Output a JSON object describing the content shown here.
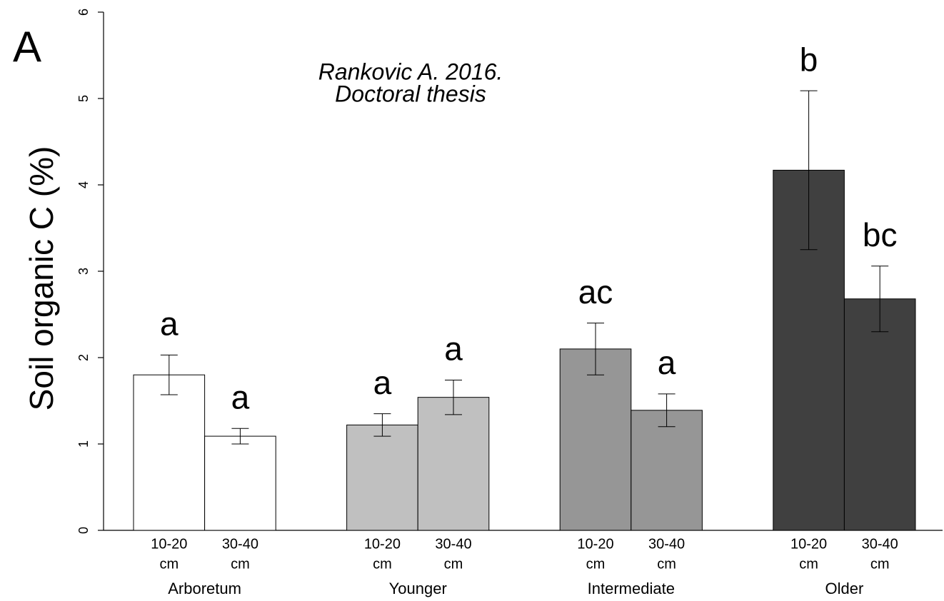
{
  "chart_data": {
    "type": "grouped-bar",
    "panel_label": "A",
    "annotation": [
      "Rankovic A. 2016.",
      "Doctoral thesis"
    ],
    "y_label": "Soil organic C (%)",
    "ylim": [
      0,
      6
    ],
    "yticks": [
      0,
      1,
      2,
      3,
      4,
      5,
      6
    ],
    "groups": [
      {
        "name": "Arboretum",
        "color": "#ffffff",
        "categories": [
          [
            "10-20",
            "cm"
          ],
          [
            "30-40",
            "cm"
          ]
        ],
        "values": [
          1.8,
          1.09
        ],
        "errors": [
          0.23,
          0.09
        ],
        "letters": [
          "a",
          "a"
        ]
      },
      {
        "name": "Younger",
        "color": "#c0c0c0",
        "categories": [
          [
            "10-20",
            "cm"
          ],
          [
            "30-40",
            "cm"
          ]
        ],
        "values": [
          1.22,
          1.54
        ],
        "errors": [
          0.13,
          0.2
        ],
        "letters": [
          "a",
          "a"
        ]
      },
      {
        "name": "Intermediate",
        "color": "#969696",
        "categories": [
          [
            "10-20",
            "cm"
          ],
          [
            "30-40",
            "cm"
          ]
        ],
        "values": [
          2.1,
          1.39
        ],
        "errors": [
          0.3,
          0.19
        ],
        "letters": [
          "ac",
          "a"
        ]
      },
      {
        "name": "Older",
        "color": "#404040",
        "categories": [
          [
            "10-20",
            "cm"
          ],
          [
            "30-40",
            "cm"
          ]
        ],
        "values": [
          4.17,
          2.68
        ],
        "errors": [
          0.92,
          0.38
        ],
        "letters": [
          "b",
          "bc"
        ]
      }
    ]
  }
}
